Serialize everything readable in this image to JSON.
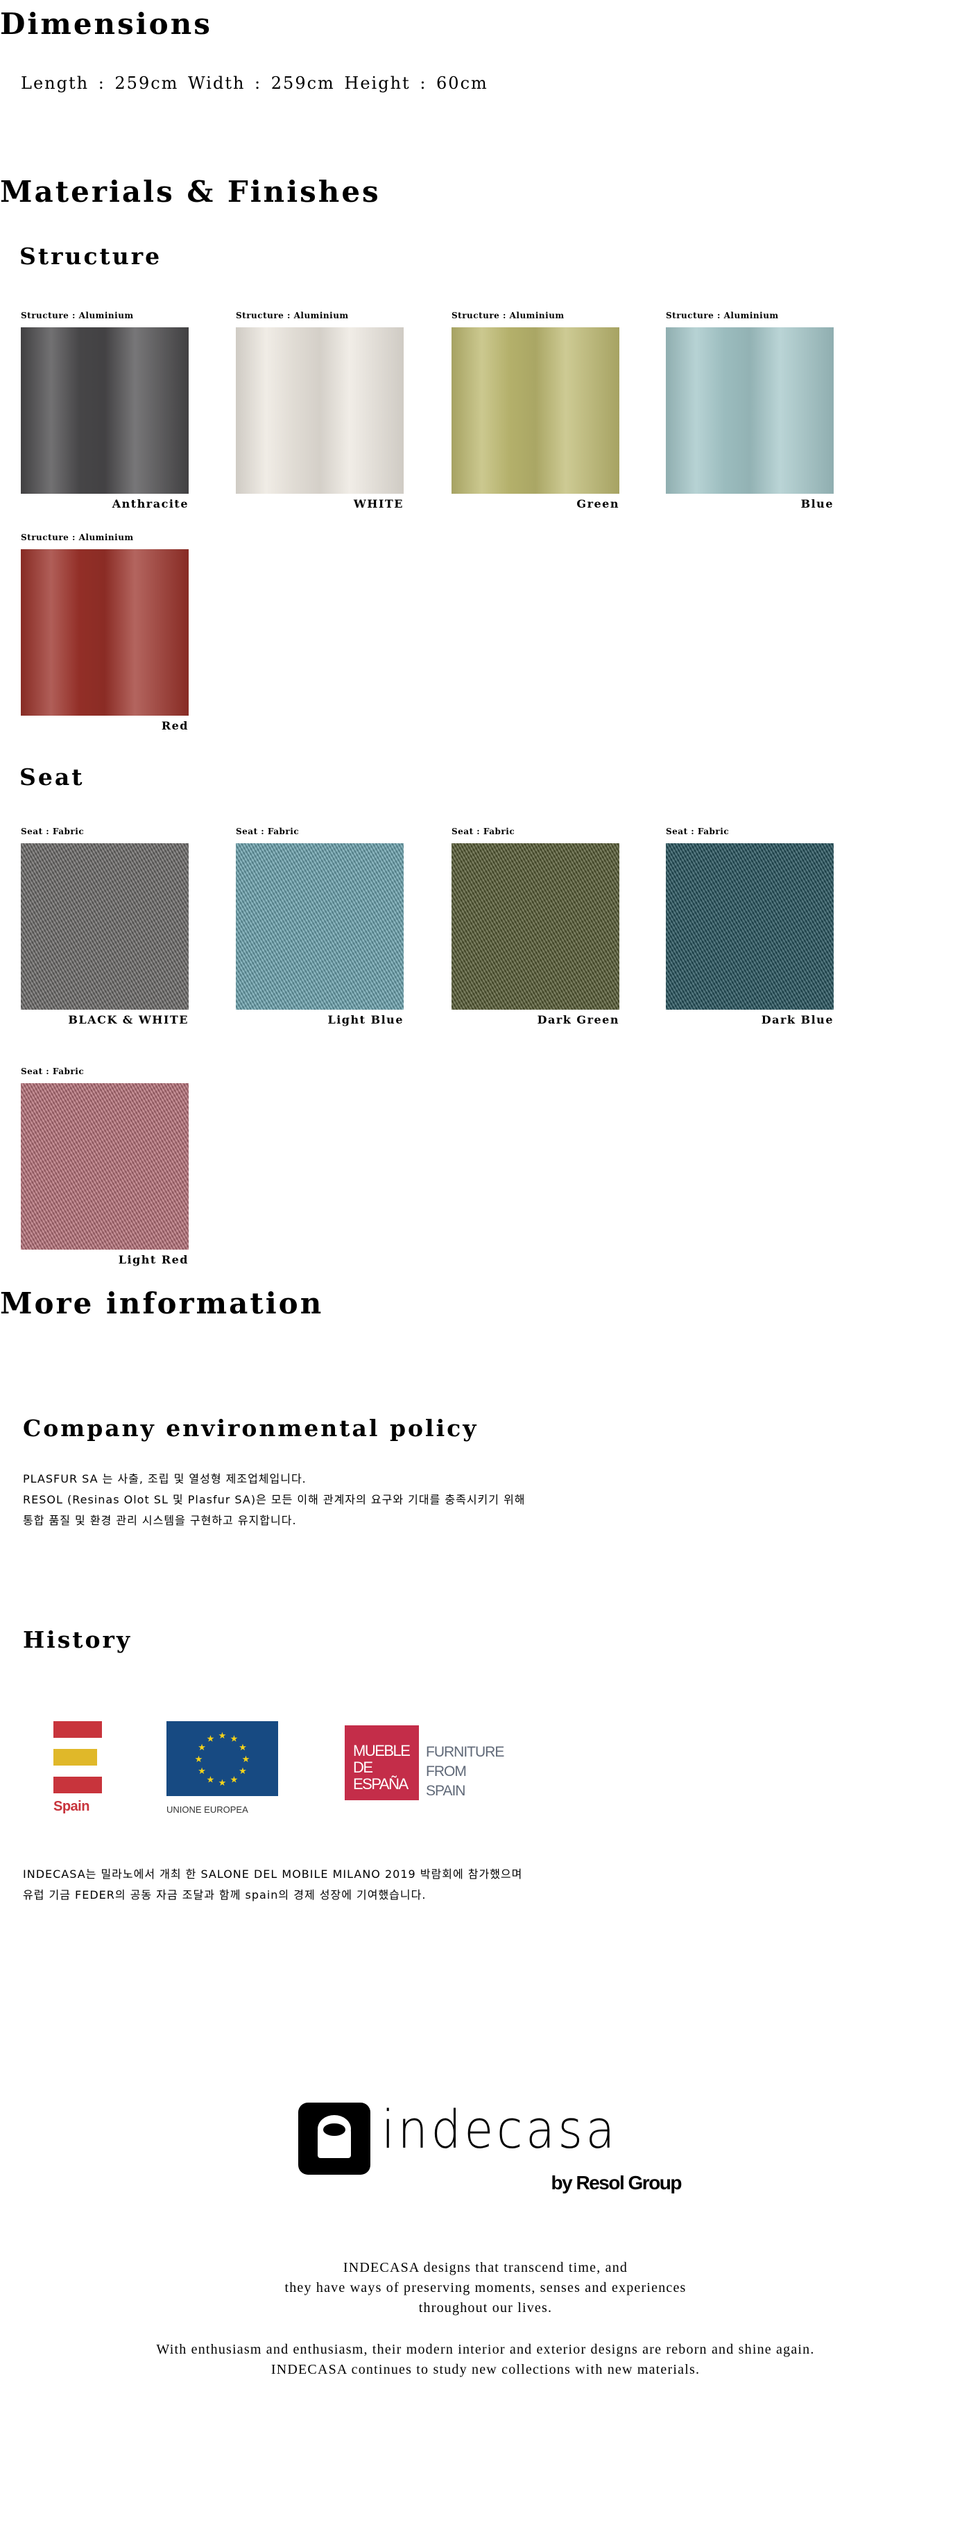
{
  "dimensions": {
    "title": "Dimensions",
    "text": "Length : 259cm  Width : 259cm  Height : 60cm"
  },
  "materials": {
    "title": "Materials & Finishes",
    "structure": {
      "title": "Structure",
      "items": [
        {
          "label": "Structure : Aluminium",
          "name": "Anthracite",
          "color": "#4a494b"
        },
        {
          "label": "Structure : Aluminium",
          "name": "WHITE",
          "color": "#ece7df"
        },
        {
          "label": "Structure : Aluminium",
          "name": "Green",
          "color": "#bdb970"
        },
        {
          "label": "Structure : Aluminium",
          "name": "Blue",
          "color": "#a3c6c8"
        },
        {
          "label": "Structure : Aluminium",
          "name": "Red",
          "color": "#9a3129"
        }
      ]
    },
    "seat": {
      "title": "Seat",
      "items": [
        {
          "label": "Seat : Fabric",
          "name": "BLACK & WHITE",
          "color": "#6b6968"
        },
        {
          "label": "Seat : Fabric",
          "name": "Light Blue",
          "color": "#6ba4b0"
        },
        {
          "label": "Seat : Fabric",
          "name": "Dark Green",
          "color": "#555a32"
        },
        {
          "label": "Seat : Fabric",
          "name": "Dark Blue",
          "color": "#24525c"
        },
        {
          "label": "Seat : Fabric",
          "name": "Light Red",
          "color": "#b8717a"
        }
      ]
    }
  },
  "more": {
    "title": "More information",
    "policy": {
      "title": "Company environmental policy",
      "lines": [
        "PLASFUR SA 는 사출, 조립 및 열성형 제조업체입니다.",
        "RESOL (Resinas Olot SL 및 Plasfur SA)은 모든 이해 관계자의 요구와 기대를 충족시키기 위해",
        "통합 품질 및 환경 관리 시스템을 구현하고 유지합니다."
      ]
    },
    "history": {
      "title": "History",
      "logos": {
        "spain": "Spain",
        "eu": "UNIONE EUROPEA",
        "mueble": [
          "MUEBLE",
          "DE",
          "ESPAÑA"
        ],
        "furniture": [
          "FURNITURE",
          "FROM",
          "SPAIN"
        ]
      },
      "lines": [
        "INDECASA는 밀라노에서 개최 한 SALONE DEL MOBILE MILANO 2019 박람회에 참가했으며",
        "유럽 기금 FEDER의 공동 자금 조달과 함께 spain의 경제 성장에 기여했습니다."
      ]
    }
  },
  "footer": {
    "logo": {
      "brand": "indecasa",
      "sub": "by Resol Group"
    },
    "lines1": [
      "INDECASA designs that transcend time, and",
      "they have ways of preserving moments, senses and experiences",
      "throughout our lives."
    ],
    "lines2": [
      "With enthusiasm and enthusiasm, their modern interior and exterior designs are reborn and shine again.",
      "INDECASA continues to study new collections with new materials."
    ]
  },
  "colors": {
    "spain_red": "#c8343c",
    "spain_yellow": "#e0b829",
    "eu_blue": "#174a82",
    "mueble_red": "#c42d49",
    "furniture_grey": "#606978"
  }
}
